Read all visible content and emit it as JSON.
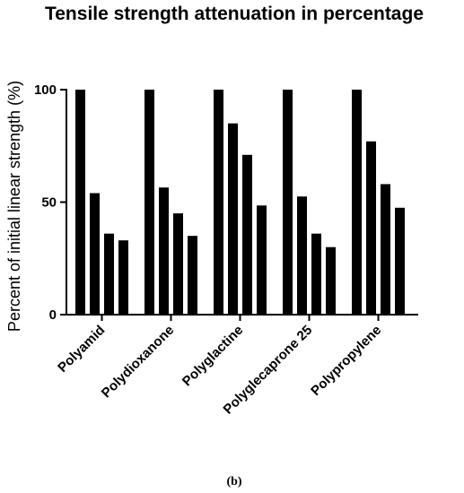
{
  "chart_data": {
    "type": "bar",
    "title": "Tensile strength attenuation in percentage",
    "xlabel": "",
    "ylabel": "Percent of initial linear strength (%)",
    "ylim": [
      0,
      100
    ],
    "yticks": [
      "0",
      "50",
      "100"
    ],
    "categories": [
      "Polyamid",
      "Polydioxanone",
      "Polyglactine",
      "Polyglecaprone 25",
      "Polypropylene"
    ],
    "series": [
      {
        "values": [
          100,
          100,
          100,
          100,
          100
        ]
      },
      {
        "values": [
          54,
          56.5,
          85,
          52.5,
          77
        ]
      },
      {
        "values": [
          36,
          45,
          71,
          36,
          58
        ]
      },
      {
        "values": [
          33,
          35,
          48.5,
          30,
          47.5
        ]
      }
    ],
    "bar_color": "#000000",
    "grid": false,
    "legend": "none"
  },
  "caption": "(b)"
}
